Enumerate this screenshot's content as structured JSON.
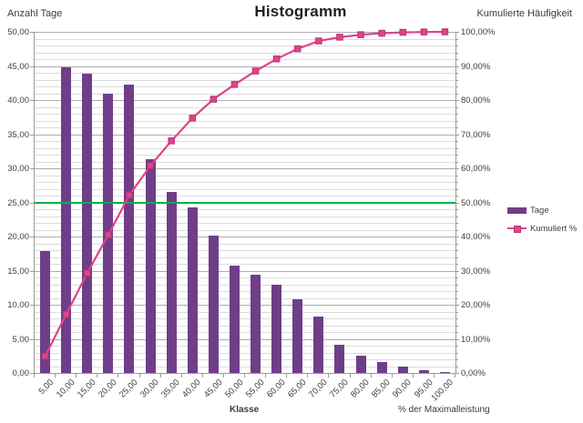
{
  "title": "Histogramm",
  "left_axis": {
    "title": "Anzahl Tage",
    "tick_labels": [
      "0,00",
      "5,00",
      "10,00",
      "15,00",
      "20,00",
      "25,00",
      "30,00",
      "35,00",
      "40,00",
      "45,00",
      "50,00"
    ]
  },
  "right_axis": {
    "title": "Kumulierte Häufigkeit",
    "tick_labels": [
      "0,00%",
      "10,00%",
      "20,00%",
      "30,00%",
      "40,00%",
      "50,00%",
      "60,00%",
      "70,00%",
      "80,00%",
      "90,00%",
      "100,00%"
    ]
  },
  "x_axis": {
    "title": "Klasse",
    "right_label": "% der Maximalleistung"
  },
  "legend": {
    "bar_label": "Tage",
    "line_label": "Kumuliert %"
  },
  "colors": {
    "bar": "#6f3e88",
    "line": "#de4489",
    "line_marker_border": "#b93273",
    "reference_line": "#00b050",
    "grid_minor": "#dcdcdc",
    "grid_major": "#adadad",
    "axis": "#9c9c9c"
  },
  "chart_data": {
    "type": "bar",
    "subtype": "pareto-histogram",
    "title": "Histogramm",
    "xlabel": "Klasse",
    "categories": [
      "5,00",
      "10,00",
      "15,00",
      "20,00",
      "25,00",
      "30,00",
      "35,00",
      "40,00",
      "45,00",
      "50,00",
      "55,00",
      "60,00",
      "65,00",
      "70,00",
      "75,00",
      "80,00",
      "85,00",
      "90,00",
      "95,00",
      "100,00"
    ],
    "series": [
      {
        "name": "Tage",
        "type": "bar",
        "axis": "left",
        "values": [
          17.9,
          44.8,
          43.9,
          40.9,
          42.3,
          31.4,
          26.6,
          24.3,
          20.2,
          15.7,
          14.4,
          12.9,
          10.8,
          8.3,
          4.1,
          2.6,
          1.6,
          0.9,
          0.4,
          0.2
        ]
      },
      {
        "name": "Kumuliert %",
        "type": "line",
        "axis": "right",
        "values": [
          4.91,
          17.21,
          29.27,
          40.5,
          52.11,
          60.74,
          68.04,
          74.71,
          80.26,
          84.57,
          88.52,
          92.06,
          95.03,
          97.31,
          98.43,
          99.15,
          99.59,
          99.84,
          99.95,
          100.0
        ]
      }
    ],
    "reference_line": {
      "axis": "left",
      "value": 25,
      "equivalent_right_pct": 50
    },
    "ylabel_left": "Anzahl Tage",
    "ylabel_right": "Kumulierte Häufigkeit",
    "ylim_left": [
      0,
      50
    ],
    "ylim_right": [
      0,
      100
    ],
    "left_major_step": 5,
    "left_minor_step": 1,
    "grid": true,
    "legend_position": "right"
  }
}
